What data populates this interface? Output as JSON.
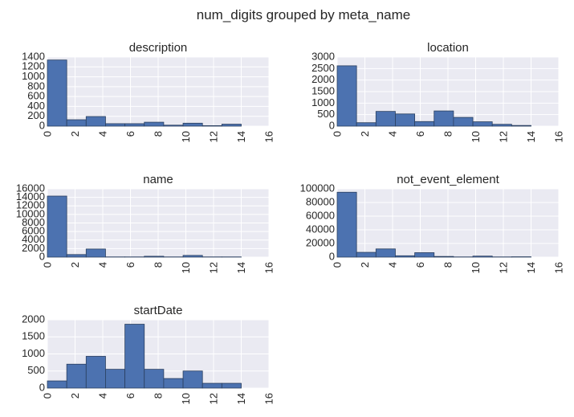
{
  "suptitle": "num_digits grouped by meta_name",
  "style": {
    "plot_background": "#eaeaf2",
    "grid": "#ffffff",
    "bar_fill": "#4c72b0",
    "bar_edge": "#2a3f5f"
  },
  "chart_data": [
    {
      "type": "bar",
      "title": "description",
      "xlabel": "",
      "ylabel": "",
      "xlim": [
        0,
        16
      ],
      "ylim": [
        0,
        1400
      ],
      "xticks": [
        "0",
        "2",
        "4",
        "6",
        "8",
        "10",
        "12",
        "14",
        "16"
      ],
      "yticks": [
        "0",
        "200",
        "400",
        "600",
        "800",
        "1000",
        "1200",
        "1400"
      ],
      "bin_edges": [
        0,
        1.4,
        2.8,
        4.2,
        5.6,
        7,
        8.4,
        9.8,
        11.2,
        12.6,
        14
      ],
      "values": [
        1340,
        130,
        195,
        50,
        50,
        80,
        20,
        60,
        10,
        40
      ]
    },
    {
      "type": "bar",
      "title": "location",
      "xlabel": "",
      "ylabel": "",
      "xlim": [
        0,
        16
      ],
      "ylim": [
        0,
        3000
      ],
      "xticks": [
        "0",
        "2",
        "4",
        "6",
        "8",
        "10",
        "12",
        "14",
        "16"
      ],
      "yticks": [
        "0",
        "500",
        "1000",
        "1500",
        "2000",
        "2500",
        "3000"
      ],
      "bin_edges": [
        0,
        1.4,
        2.8,
        4.2,
        5.6,
        7,
        8.4,
        9.8,
        11.2,
        12.6,
        14
      ],
      "values": [
        2620,
        150,
        640,
        530,
        200,
        660,
        380,
        190,
        80,
        30
      ]
    },
    {
      "type": "bar",
      "title": "name",
      "xlabel": "",
      "ylabel": "",
      "xlim": [
        0,
        16
      ],
      "ylim": [
        0,
        16000
      ],
      "xticks": [
        "0",
        "2",
        "4",
        "6",
        "8",
        "10",
        "12",
        "14",
        "16"
      ],
      "yticks": [
        "0",
        "2000",
        "4000",
        "6000",
        "8000",
        "10000",
        "12000",
        "14000",
        "16000"
      ],
      "bin_edges": [
        0,
        1.4,
        2.8,
        4.2,
        5.6,
        7,
        8.4,
        9.8,
        11.2,
        12.6,
        14
      ],
      "values": [
        14300,
        600,
        1900,
        50,
        50,
        200,
        50,
        400,
        50,
        50
      ]
    },
    {
      "type": "bar",
      "title": "not_event_element",
      "xlabel": "",
      "ylabel": "",
      "xlim": [
        0,
        16
      ],
      "ylim": [
        0,
        100000
      ],
      "xticks": [
        "0",
        "2",
        "4",
        "6",
        "8",
        "10",
        "12",
        "14",
        "16"
      ],
      "yticks": [
        "0",
        "20000",
        "40000",
        "60000",
        "80000",
        "100000"
      ],
      "bin_edges": [
        0,
        1.4,
        2.8,
        4.2,
        5.6,
        7,
        8.4,
        9.8,
        11.2,
        12.6,
        14
      ],
      "values": [
        95000,
        7000,
        12000,
        2000,
        6500,
        1000,
        300,
        1500,
        300,
        500
      ]
    },
    {
      "type": "bar",
      "title": "startDate",
      "xlabel": "",
      "ylabel": "",
      "xlim": [
        0,
        16
      ],
      "ylim": [
        0,
        2000
      ],
      "xticks": [
        "0",
        "2",
        "4",
        "6",
        "8",
        "10",
        "12",
        "14",
        "16"
      ],
      "yticks": [
        "0",
        "500",
        "1000",
        "1500",
        "2000"
      ],
      "bin_edges": [
        0,
        1.4,
        2.8,
        4.2,
        5.6,
        7,
        8.4,
        9.8,
        11.2,
        12.6,
        14
      ],
      "values": [
        210,
        700,
        930,
        550,
        1870,
        550,
        280,
        500,
        140,
        140
      ]
    }
  ]
}
